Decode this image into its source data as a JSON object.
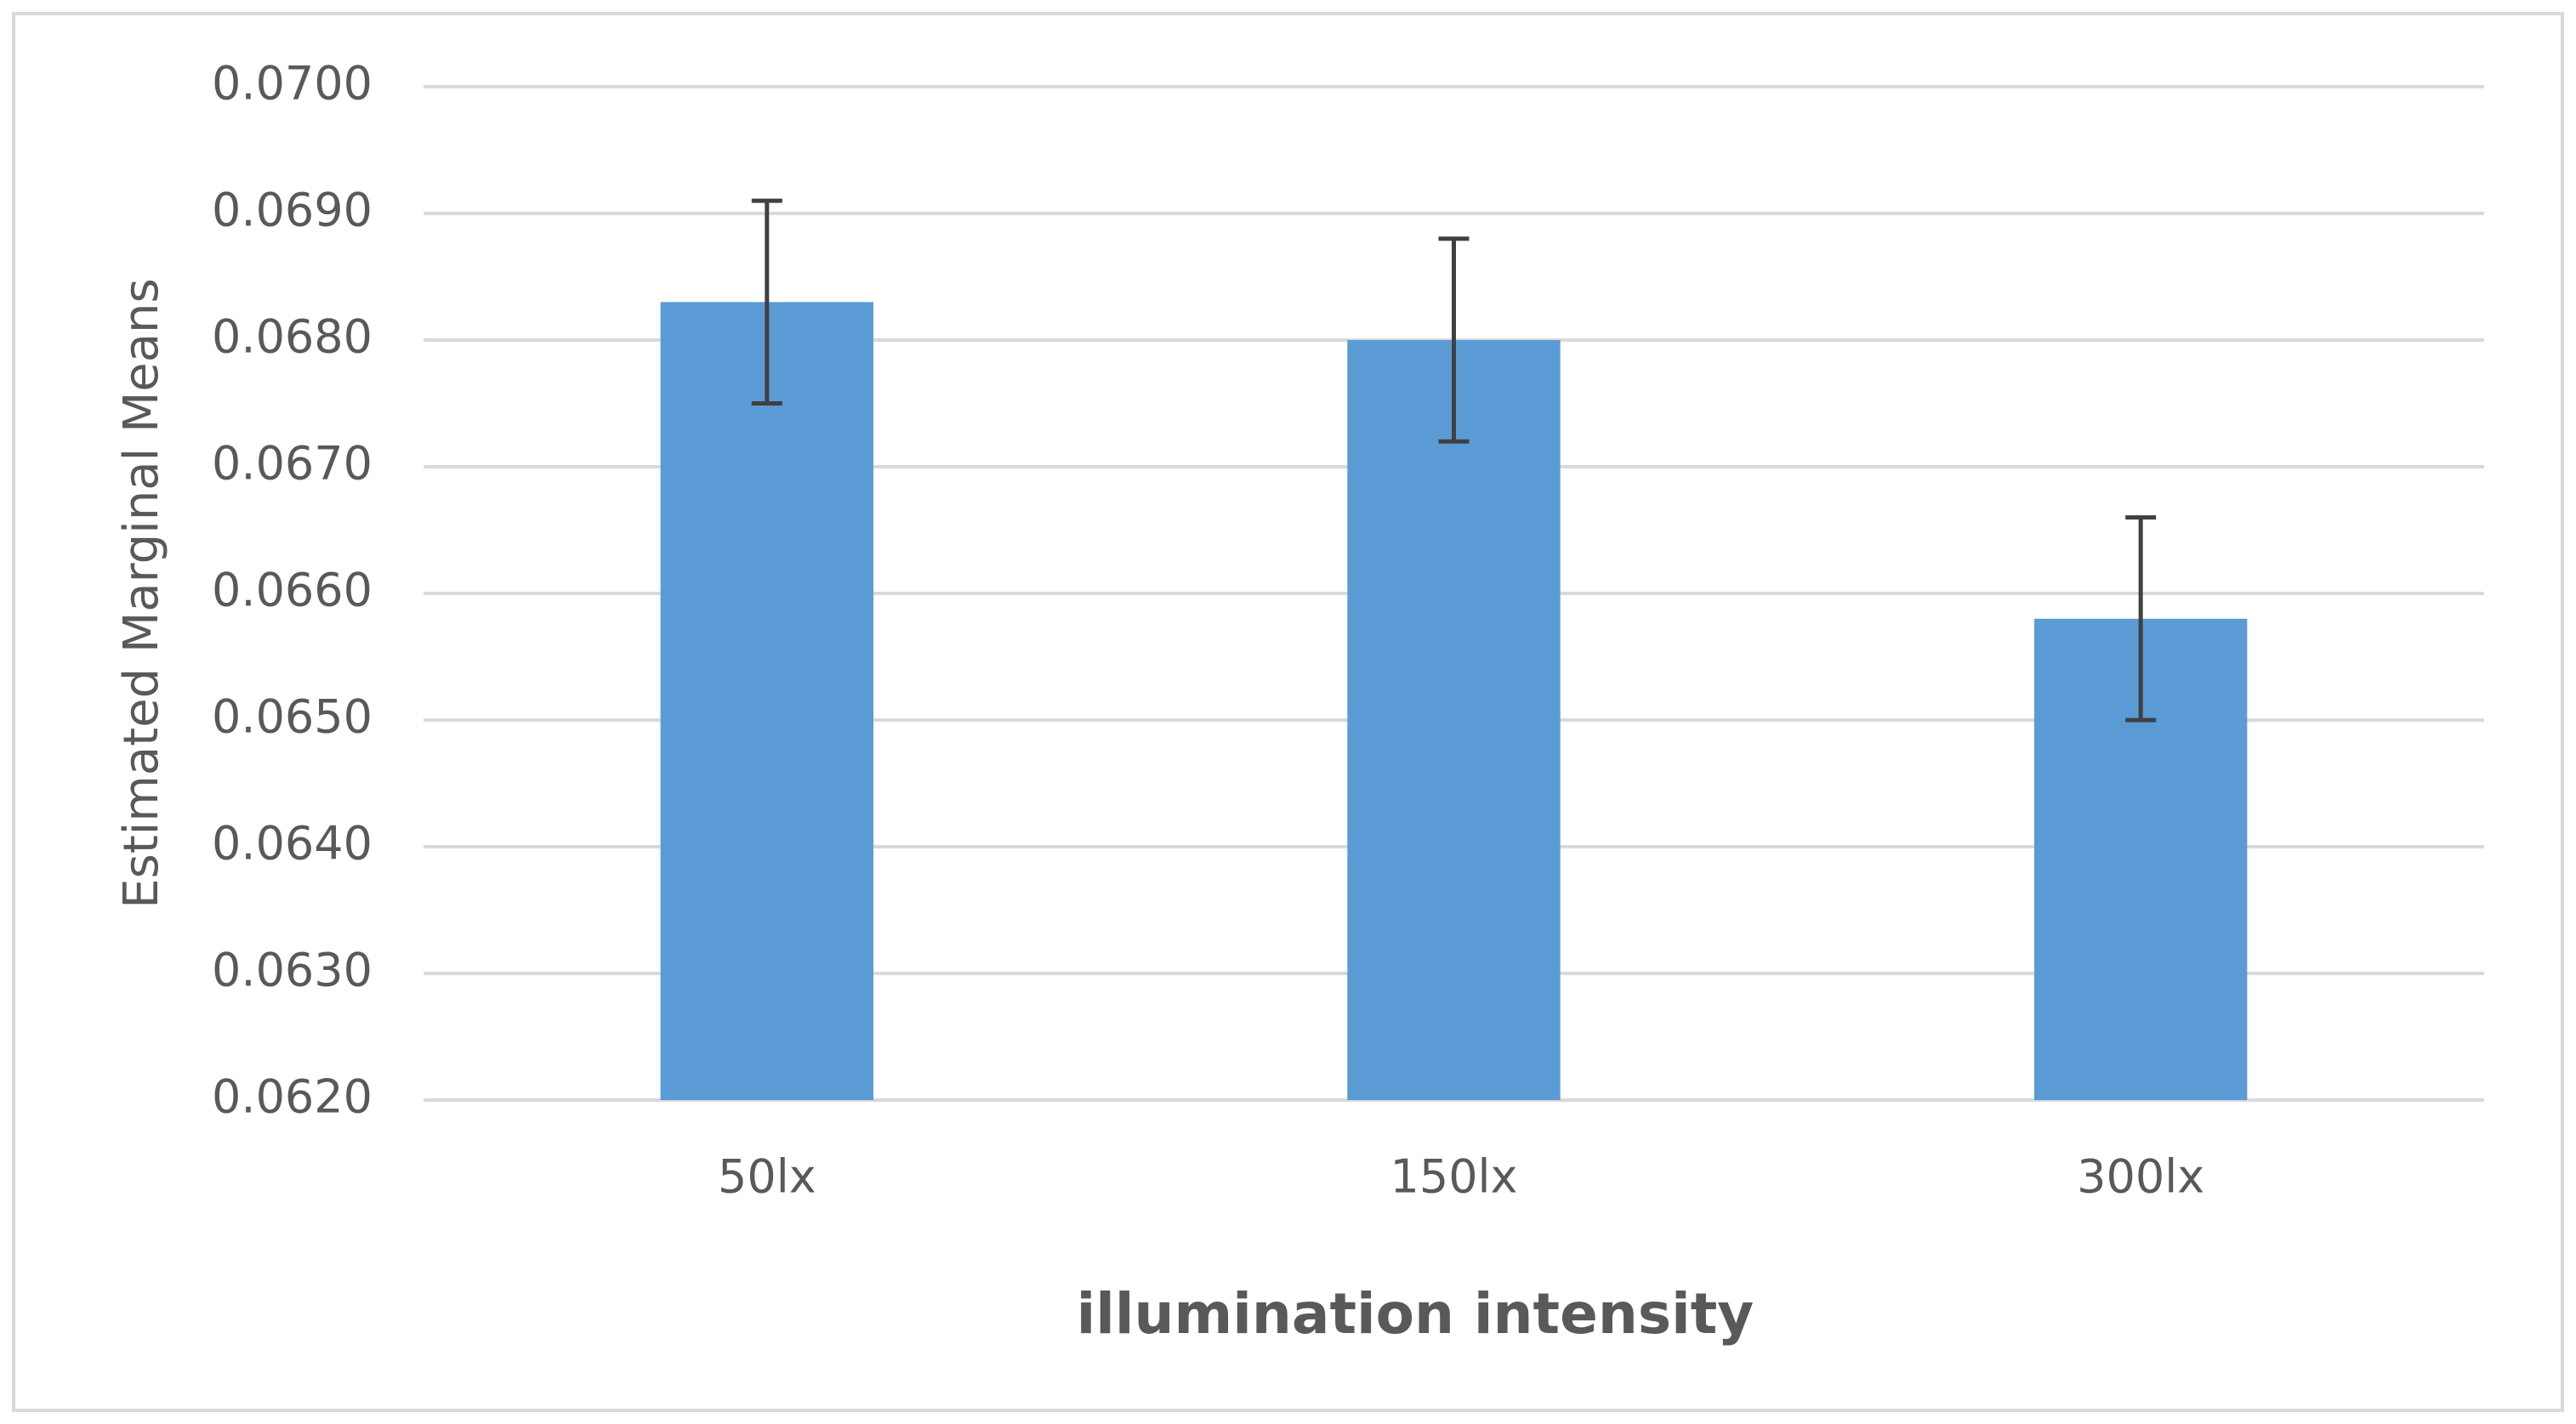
{
  "chart_data": {
    "type": "bar",
    "x_label": "illumination intensity",
    "y_label": "Estimated Marginal Means",
    "categories": [
      "50lx",
      "150lx",
      "300lx"
    ],
    "values": [
      0.0683,
      0.068,
      0.0658
    ],
    "errors": [
      0.0008,
      0.0008,
      0.0008
    ],
    "color": "#5b9bd5",
    "error_color": "#404040",
    "ylim": [
      0.062,
      0.07
    ],
    "yticks": [
      {
        "value": 0.062,
        "label": "0.0620"
      },
      {
        "value": 0.063,
        "label": "0.0630"
      },
      {
        "value": 0.064,
        "label": "0.0640"
      },
      {
        "value": 0.065,
        "label": "0.0650"
      },
      {
        "value": 0.066,
        "label": "0.0660"
      },
      {
        "value": 0.067,
        "label": "0.0670"
      },
      {
        "value": 0.068,
        "label": "0.0680"
      },
      {
        "value": 0.069,
        "label": "0.0690"
      },
      {
        "value": 0.07,
        "label": "0.0700"
      }
    ],
    "grid": true
  }
}
